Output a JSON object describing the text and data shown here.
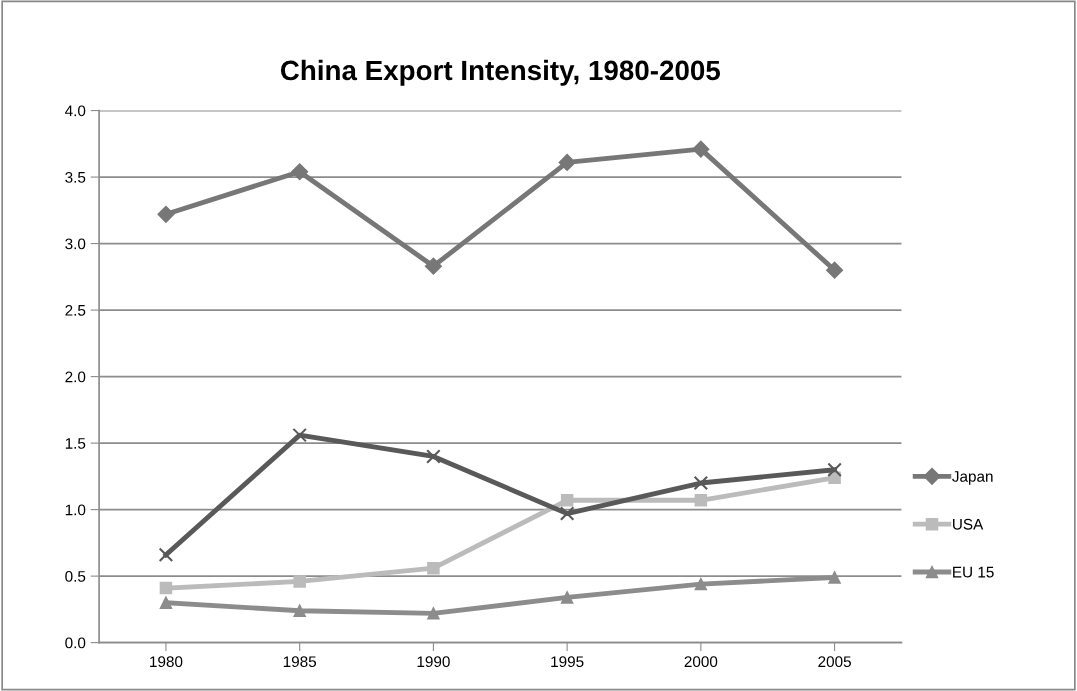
{
  "chart_data": {
    "type": "line",
    "title": "China Export Intensity, 1980-2005",
    "categories": [
      "1980",
      "1985",
      "1990",
      "1995",
      "2000",
      "2005"
    ],
    "series": [
      {
        "name": "Japan",
        "color": "#777777",
        "marker": "diamond",
        "values": [
          3.22,
          3.54,
          2.83,
          3.61,
          3.71,
          2.8
        ]
      },
      {
        "name": "USA",
        "color": "#bbbbbb",
        "marker": "square",
        "values": [
          0.41,
          0.46,
          0.56,
          1.07,
          1.07,
          1.24
        ]
      },
      {
        "name": "EU 15",
        "color": "#8c8c8c",
        "marker": "triangle",
        "values": [
          0.3,
          0.24,
          0.22,
          0.34,
          0.44,
          0.49
        ]
      },
      {
        "color": "#595959",
        "marker": "cross",
        "values": [
          0.66,
          1.56,
          1.4,
          0.97,
          1.2,
          1.3
        ]
      }
    ],
    "ylim": [
      0,
      4
    ],
    "yticks": [
      {
        "value": 0,
        "label": "0.0"
      },
      {
        "value": 0.5,
        "label": "0.5"
      },
      {
        "value": 1,
        "label": "1.0"
      },
      {
        "value": 1.5,
        "label": "1.5"
      },
      {
        "value": 2,
        "label": "2.0"
      },
      {
        "value": 2.5,
        "label": "2.5"
      },
      {
        "value": 3,
        "label": "3.0"
      },
      {
        "value": 3.5,
        "label": "3.5"
      },
      {
        "value": 4,
        "label": "4.0"
      }
    ],
    "grid": "y",
    "legend": "right",
    "line_style": "solid"
  }
}
